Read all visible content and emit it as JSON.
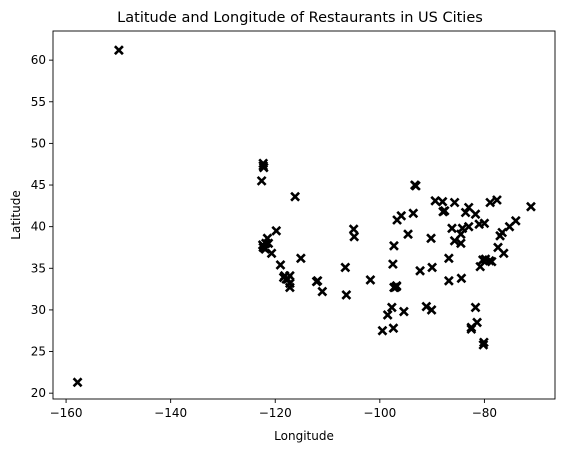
{
  "chart_data": {
    "type": "scatter",
    "title": "Latitude and Longitude of Restaurants in US Cities",
    "xlabel": "Longitude",
    "ylabel": "Latitude",
    "xlim": [
      -162.5,
      -66.5
    ],
    "ylim": [
      19.3,
      63.5
    ],
    "xticks": [
      -160,
      -140,
      -120,
      -100,
      -80
    ],
    "yticks": [
      20,
      25,
      30,
      35,
      40,
      45,
      50,
      55,
      60
    ],
    "xtick_labels": [
      "−160",
      "−140",
      "−120",
      "−100",
      "−80"
    ],
    "ytick_labels": [
      "20",
      "25",
      "30",
      "35",
      "40",
      "45",
      "50",
      "55",
      "60"
    ],
    "grid": false,
    "marker": "x",
    "marker_color": "#000000",
    "series": [
      {
        "points": [
          [
            -157.8,
            21.3
          ],
          [
            -149.9,
            61.2
          ],
          [
            -122.3,
            47.6
          ],
          [
            -122.3,
            47.3
          ],
          [
            -122.2,
            47.1
          ],
          [
            -122.6,
            45.5
          ],
          [
            -116.2,
            43.6
          ],
          [
            -122.4,
            37.8
          ],
          [
            -122.3,
            37.5
          ],
          [
            -121.9,
            37.3
          ],
          [
            -121.5,
            38.6
          ],
          [
            -121.8,
            38.0
          ],
          [
            -122.0,
            37.4
          ],
          [
            -120.7,
            36.8
          ],
          [
            -119.8,
            39.5
          ],
          [
            -119.0,
            35.4
          ],
          [
            -118.2,
            34.1
          ],
          [
            -118.4,
            33.9
          ],
          [
            -117.9,
            33.7
          ],
          [
            -117.2,
            34.1
          ],
          [
            -117.2,
            32.7
          ],
          [
            -117.2,
            33.2
          ],
          [
            -115.1,
            36.2
          ],
          [
            -112.1,
            33.4
          ],
          [
            -111.9,
            33.5
          ],
          [
            -111.0,
            32.2
          ],
          [
            -106.6,
            35.1
          ],
          [
            -106.4,
            31.8
          ],
          [
            -105.0,
            39.7
          ],
          [
            -104.9,
            38.8
          ],
          [
            -101.8,
            33.6
          ],
          [
            -99.5,
            27.5
          ],
          [
            -98.5,
            29.4
          ],
          [
            -97.7,
            30.3
          ],
          [
            -97.4,
            27.8
          ],
          [
            -97.5,
            35.5
          ],
          [
            -97.3,
            37.7
          ],
          [
            -96.8,
            32.8
          ],
          [
            -97.3,
            32.7
          ],
          [
            -96.7,
            40.8
          ],
          [
            -95.9,
            41.3
          ],
          [
            -95.4,
            29.8
          ],
          [
            -94.6,
            39.1
          ],
          [
            -93.3,
            45.0
          ],
          [
            -93.1,
            44.9
          ],
          [
            -93.6,
            41.6
          ],
          [
            -92.3,
            34.7
          ],
          [
            -90.2,
            38.6
          ],
          [
            -90.1,
            30.0
          ],
          [
            -89.4,
            43.1
          ],
          [
            -91.1,
            30.4
          ],
          [
            -90.0,
            35.1
          ],
          [
            -88.0,
            43.0
          ],
          [
            -87.9,
            41.8
          ],
          [
            -87.6,
            41.9
          ],
          [
            -86.8,
            33.5
          ],
          [
            -86.8,
            36.2
          ],
          [
            -86.2,
            39.8
          ],
          [
            -85.7,
            38.3
          ],
          [
            -84.5,
            39.1
          ],
          [
            -84.4,
            33.8
          ],
          [
            -84.5,
            38.0
          ],
          [
            -83.0,
            40.0
          ],
          [
            -83.0,
            42.3
          ],
          [
            -83.6,
            41.7
          ],
          [
            -82.5,
            27.9
          ],
          [
            -82.5,
            27.7
          ],
          [
            -81.7,
            30.3
          ],
          [
            -81.7,
            41.5
          ],
          [
            -81.4,
            28.5
          ],
          [
            -80.8,
            35.2
          ],
          [
            -80.2,
            25.8
          ],
          [
            -80.1,
            26.1
          ],
          [
            -80.0,
            40.4
          ],
          [
            -79.8,
            36.1
          ],
          [
            -79.0,
            35.9
          ],
          [
            -78.9,
            42.9
          ],
          [
            -78.6,
            35.8
          ],
          [
            -77.6,
            43.2
          ],
          [
            -77.0,
            38.9
          ],
          [
            -77.4,
            37.5
          ],
          [
            -76.6,
            39.3
          ],
          [
            -76.3,
            36.8
          ],
          [
            -75.2,
            40.0
          ],
          [
            -74.0,
            40.7
          ],
          [
            -71.1,
            42.4
          ],
          [
            -81.0,
            40.3
          ],
          [
            -84.2,
            39.8
          ],
          [
            -85.7,
            42.9
          ],
          [
            -96.8,
            32.9
          ],
          [
            -97.1,
            32.7
          ],
          [
            -117.6,
            33.7
          ],
          [
            -121.3,
            38.0
          ],
          [
            -80.3,
            36.0
          ]
        ]
      }
    ]
  }
}
